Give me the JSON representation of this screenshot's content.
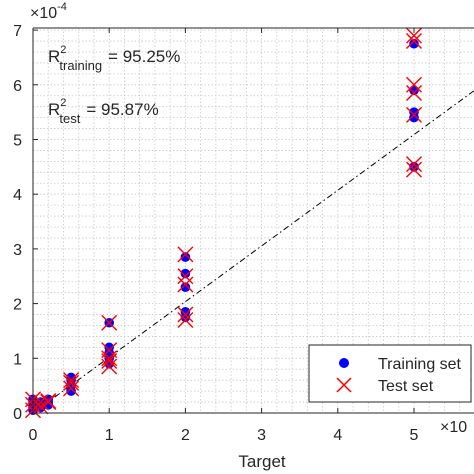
{
  "chart_data": {
    "type": "scatter",
    "xlabel": "Target",
    "ylabel": "",
    "x_exponent_label": "×10",
    "y_exponent_label": "×10",
    "y_exponent_power": "-4",
    "xlim": [
      0,
      6
    ],
    "ylim": [
      0,
      7
    ],
    "x_ticks": [
      0,
      1,
      2,
      3,
      4,
      5
    ],
    "y_ticks": [
      0,
      1,
      2,
      3,
      4,
      5,
      6,
      7
    ],
    "grid": "minor-dotted",
    "annotations": {
      "r2_training": {
        "prefix": "R",
        "sup": "2",
        "sub": "training",
        "value": "= 95.25%"
      },
      "r2_test": {
        "prefix": "R",
        "sup": "2",
        "sub": "test",
        "value": "= 95.87%"
      }
    },
    "legend": {
      "placement": "bottom-right",
      "entries": [
        "Training set",
        "Test set"
      ]
    },
    "fit_line": {
      "style": "dash-dot",
      "slope_data_units": 1.0
    },
    "series": [
      {
        "name": "Training set",
        "marker": "circle",
        "color": "#0000ff",
        "points": [
          [
            0,
            0.05
          ],
          [
            0,
            0.1
          ],
          [
            0,
            0.2
          ],
          [
            0,
            0.25
          ],
          [
            0.1,
            0.1
          ],
          [
            0.1,
            0.15
          ],
          [
            0.1,
            0.2
          ],
          [
            0.2,
            0.15
          ],
          [
            0.2,
            0.2
          ],
          [
            0.2,
            0.25
          ],
          [
            0.5,
            0.4
          ],
          [
            0.5,
            0.5
          ],
          [
            0.5,
            0.6
          ],
          [
            0.5,
            0.65
          ],
          [
            1,
            0.9
          ],
          [
            1,
            1.0
          ],
          [
            1,
            1.1
          ],
          [
            1,
            1.2
          ],
          [
            1,
            1.65
          ],
          [
            2,
            1.75
          ],
          [
            2,
            1.85
          ],
          [
            2,
            2.3
          ],
          [
            2,
            2.55
          ],
          [
            2,
            2.85
          ],
          [
            5,
            4.5
          ],
          [
            5,
            5.4
          ],
          [
            5,
            5.5
          ],
          [
            5,
            5.9
          ],
          [
            5,
            6.75
          ]
        ]
      },
      {
        "name": "Test set",
        "marker": "x",
        "color": "#ff0000",
        "points": [
          [
            0,
            0.05
          ],
          [
            0,
            0.15
          ],
          [
            0,
            0.25
          ],
          [
            0.1,
            0.12
          ],
          [
            0.1,
            0.2
          ],
          [
            0.2,
            0.2
          ],
          [
            0.2,
            0.22
          ],
          [
            0.5,
            0.45
          ],
          [
            0.5,
            0.55
          ],
          [
            0.5,
            0.6
          ],
          [
            1,
            0.85
          ],
          [
            1,
            0.95
          ],
          [
            1,
            1.0
          ],
          [
            1,
            1.15
          ],
          [
            1,
            1.65
          ],
          [
            2,
            1.7
          ],
          [
            2,
            1.8
          ],
          [
            2,
            2.35
          ],
          [
            2,
            2.5
          ],
          [
            2,
            2.9
          ],
          [
            5,
            4.45
          ],
          [
            5,
            4.55
          ],
          [
            5,
            5.45
          ],
          [
            5,
            5.85
          ],
          [
            5,
            6.0
          ],
          [
            5,
            6.8
          ],
          [
            5,
            6.9
          ]
        ]
      }
    ],
    "colors": {
      "axis": "#262626",
      "grid": "#c8c8c8",
      "fit": "#000000"
    }
  }
}
